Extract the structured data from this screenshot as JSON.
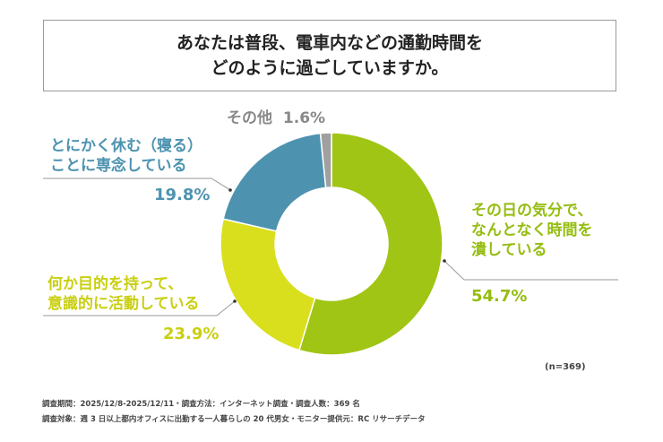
{
  "chart_data": {
    "type": "pie",
    "title": [
      "あなたは普段、電車内などの通勤時間を",
      "どのように過ごしていますか。"
    ],
    "slices": [
      {
        "label": [
          "その日の気分で、",
          "なんとなく時間を",
          "潰している"
        ],
        "value": 54.7,
        "value_label": "54.7%",
        "color": "#a0c514"
      },
      {
        "label": [
          "何か目的を持って、",
          "意識的に活動している"
        ],
        "value": 23.9,
        "value_label": "23.9%",
        "color": "#d9df1c"
      },
      {
        "label": [
          "とにかく休む（寝る）",
          "ことに専念している"
        ],
        "value": 19.8,
        "value_label": "19.8%",
        "color": "#4d93b0"
      },
      {
        "label": [
          "その他"
        ],
        "value": 1.6,
        "value_label": "1.6%",
        "color": "#a0a0a0"
      }
    ],
    "n_label": "(n=369)"
  },
  "footnotes": [
    "調査期間：2025/12/8-2025/12/11・調査方法：インターネット調査・調査人数：369 名",
    "調査対象：週 3 日以上都内オフィスに出勤する一人暮らしの 20 代男女・モニター提供元：RC リサーチデータ"
  ]
}
